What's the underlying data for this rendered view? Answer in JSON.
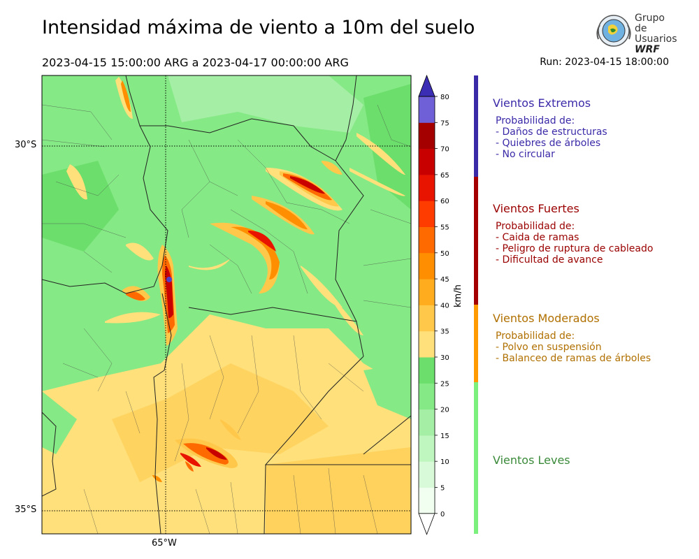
{
  "title": "Intensidad máxima de viento a 10m del suelo",
  "period": "2023-04-15 15:00:00 ARG  a  2023-04-17 00:00:00 ARG",
  "run": "Run: 2023-04-15 18:00:00",
  "logo": {
    "line1": "Grupo de",
    "line2": "Usuarios",
    "line3": "WRF"
  },
  "map": {
    "lat_labels": [
      "30°S",
      "35°S"
    ],
    "lon_labels": [
      "65°W"
    ]
  },
  "colorbar": {
    "unit": "km/h",
    "ticks": [
      "0",
      "5",
      "10",
      "15",
      "20",
      "25",
      "30",
      "35",
      "40",
      "45",
      "50",
      "55",
      "60",
      "65",
      "70",
      "75",
      "80"
    ],
    "colors": [
      "#f0fff0",
      "#d8fad8",
      "#bff5bf",
      "#a5eea5",
      "#85e985",
      "#6cde6c",
      "#ffe07a",
      "#ffc84a",
      "#ffad1e",
      "#ff8f00",
      "#ff6a00",
      "#ff3c00",
      "#e81400",
      "#c80000",
      "#a50000",
      "#7060d8",
      "#5040c8",
      "#3c2eb4"
    ]
  },
  "categories": [
    {
      "name": "Vientos Extremos",
      "color": "#3a2aa8",
      "lines": [
        "Probabilidad de:",
        "- Daños de estructuras",
        "- Quiebres de árboles",
        "- No circular"
      ]
    },
    {
      "name": "Vientos Fuertes",
      "color": "#9a0000",
      "lines": [
        "Probabilidad de:",
        "- Caida de ramas",
        "- Peligro de ruptura de cableado",
        "- Dificultad de avance"
      ]
    },
    {
      "name": "Vientos Moderados",
      "color": "#b07000",
      "lines": [
        "Probabilidad de:",
        "- Polvo en suspensión",
        "- Balanceo de ramas de árboles"
      ]
    },
    {
      "name": "Vientos Leves",
      "color": "#3a8a3a",
      "lines": []
    }
  ]
}
